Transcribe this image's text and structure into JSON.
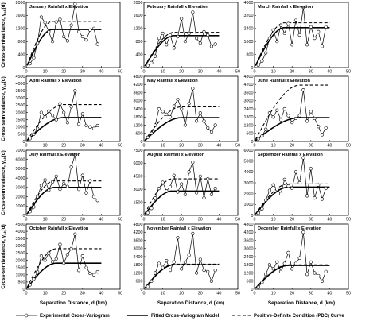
{
  "chart_data": {
    "type": "line",
    "x_label": "Separation Distance, d (km)",
    "y_label": "Cross-semivariance, γ",
    "y_label_sub": "ab",
    "y_label_tail": "(d)",
    "x_ticks": [
      0,
      10,
      20,
      30,
      40,
      50
    ],
    "x_range": [
      0,
      50
    ],
    "legend": {
      "experimental": "Experimental Cross-Variogram",
      "fitted": "Fitted Cross-Variogram Model",
      "pdc": "Positive-Definite Condition (PDC) Curve"
    },
    "panels": [
      {
        "title": "January Rainfall x Elevation",
        "y_ticks": [
          0,
          400,
          800,
          1200,
          1600,
          2000
        ],
        "ylim": [
          0,
          2000
        ],
        "sill": 1170,
        "range": 14,
        "pdc": 1420,
        "points": [
          [
            2,
            120
          ],
          [
            4,
            300
          ],
          [
            6,
            750
          ],
          [
            8,
            1550
          ],
          [
            10,
            1380
          ],
          [
            12,
            1100
          ],
          [
            14,
            800
          ],
          [
            16,
            1400
          ],
          [
            18,
            1480
          ],
          [
            20,
            950
          ],
          [
            22,
            820
          ],
          [
            24,
            1300
          ],
          [
            26,
            1950
          ],
          [
            28,
            1100
          ],
          [
            30,
            950
          ],
          [
            32,
            850
          ],
          [
            34,
            1150
          ],
          [
            36,
            1200
          ],
          [
            38,
            720
          ]
        ]
      },
      {
        "title": "February Rainfall x Elevation",
        "y_ticks": [
          0,
          400,
          800,
          1200,
          1600,
          2000
        ],
        "ylim": [
          0,
          2000
        ],
        "sill": 980,
        "range": 16,
        "pdc": 1080,
        "points": [
          [
            2,
            60
          ],
          [
            4,
            150
          ],
          [
            6,
            350
          ],
          [
            8,
            900
          ],
          [
            10,
            1050
          ],
          [
            12,
            700
          ],
          [
            14,
            1000
          ],
          [
            16,
            600
          ],
          [
            18,
            950
          ],
          [
            20,
            1500
          ],
          [
            22,
            800
          ],
          [
            24,
            1050
          ],
          [
            26,
            1700
          ],
          [
            28,
            900
          ],
          [
            30,
            750
          ],
          [
            32,
            1100
          ],
          [
            34,
            1000
          ],
          [
            36,
            650
          ],
          [
            38,
            720
          ]
        ]
      },
      {
        "title": "March Rainfall x Elevation",
        "y_ticks": [
          0,
          800,
          1600,
          2400,
          3200,
          4000
        ],
        "ylim": [
          0,
          4000
        ],
        "sill": 2450,
        "range": 16,
        "pdc": 2750,
        "points": [
          [
            2,
            150
          ],
          [
            4,
            400
          ],
          [
            6,
            900
          ],
          [
            8,
            1800
          ],
          [
            10,
            2300
          ],
          [
            12,
            1600
          ],
          [
            14,
            2600
          ],
          [
            16,
            2100
          ],
          [
            18,
            2700
          ],
          [
            20,
            1400
          ],
          [
            22,
            2900
          ],
          [
            24,
            2000
          ],
          [
            26,
            3700
          ],
          [
            28,
            1400
          ],
          [
            30,
            2500
          ],
          [
            32,
            1800
          ],
          [
            34,
            2200
          ],
          [
            36,
            1300
          ],
          [
            38,
            2500
          ]
        ]
      },
      {
        "title": "April Rainfall x Elevation",
        "y_ticks": [
          0,
          500,
          1000,
          1500,
          2000,
          2500,
          3000,
          3500,
          4000,
          4500
        ],
        "ylim": [
          0,
          4500
        ],
        "sill": 1650,
        "range": 20,
        "pdc": 2550,
        "points": [
          [
            2,
            200
          ],
          [
            4,
            500
          ],
          [
            6,
            900
          ],
          [
            8,
            2000
          ],
          [
            10,
            1700
          ],
          [
            12,
            2100
          ],
          [
            14,
            1800
          ],
          [
            16,
            1500
          ],
          [
            18,
            2600
          ],
          [
            20,
            2000
          ],
          [
            22,
            1300
          ],
          [
            24,
            2400
          ],
          [
            26,
            3500
          ],
          [
            28,
            1200
          ],
          [
            30,
            1900
          ],
          [
            32,
            1100
          ],
          [
            34,
            1000
          ],
          [
            36,
            900
          ],
          [
            38,
            1100
          ]
        ]
      },
      {
        "title": "May Rainfall x Elevation",
        "y_ticks": [
          0,
          600,
          1200,
          1800,
          2400,
          3000,
          3600,
          4200,
          4800
        ],
        "ylim": [
          0,
          4800
        ],
        "sill": 1750,
        "range": 20,
        "pdc": 2550,
        "points": [
          [
            2,
            300
          ],
          [
            4,
            600
          ],
          [
            6,
            1200
          ],
          [
            8,
            2400
          ],
          [
            10,
            2200
          ],
          [
            12,
            2000
          ],
          [
            14,
            1800
          ],
          [
            16,
            2600
          ],
          [
            18,
            3100
          ],
          [
            20,
            2400
          ],
          [
            22,
            1200
          ],
          [
            24,
            2800
          ],
          [
            26,
            3900
          ],
          [
            28,
            1500
          ],
          [
            30,
            2100
          ],
          [
            32,
            1500
          ],
          [
            34,
            1000
          ],
          [
            36,
            700
          ],
          [
            38,
            1200
          ]
        ]
      },
      {
        "title": "June Rainfall x Elevation",
        "y_ticks": [
          0,
          600,
          1200,
          1800,
          2400,
          3000,
          3600,
          4200,
          4800
        ],
        "ylim": [
          0,
          4800
        ],
        "sill": 1750,
        "range": 24,
        "pdc": 4150,
        "points": [
          [
            2,
            200
          ],
          [
            4,
            400
          ],
          [
            6,
            900
          ],
          [
            8,
            2100
          ],
          [
            10,
            1800
          ],
          [
            12,
            2300
          ],
          [
            14,
            1600
          ],
          [
            16,
            2400
          ],
          [
            18,
            1900
          ],
          [
            20,
            1400
          ],
          [
            22,
            1700
          ],
          [
            24,
            1900
          ],
          [
            26,
            3800
          ],
          [
            28,
            1500
          ],
          [
            30,
            2200
          ],
          [
            32,
            1700
          ],
          [
            34,
            1100
          ],
          [
            36,
            500
          ],
          [
            38,
            1000
          ]
        ]
      },
      {
        "title": "July Rainfall x Elevation",
        "y_ticks": [
          0,
          1000,
          2000,
          3000,
          4000,
          5000,
          6000,
          7000
        ],
        "ylim": [
          0,
          7000
        ],
        "sill": 3000,
        "range": 15,
        "pdc": 3700,
        "points": [
          [
            2,
            400
          ],
          [
            4,
            900
          ],
          [
            6,
            2000
          ],
          [
            8,
            3200
          ],
          [
            10,
            3800
          ],
          [
            12,
            2700
          ],
          [
            14,
            3600
          ],
          [
            16,
            4200
          ],
          [
            18,
            2800
          ],
          [
            20,
            3400
          ],
          [
            22,
            3100
          ],
          [
            24,
            5200
          ],
          [
            26,
            6500
          ],
          [
            28,
            2800
          ],
          [
            30,
            4300
          ],
          [
            32,
            2400
          ],
          [
            34,
            3700
          ],
          [
            36,
            2000
          ],
          [
            38,
            1600
          ]
        ]
      },
      {
        "title": "August Rainfall x Elevation",
        "y_ticks": [
          0,
          1500,
          3000,
          4500,
          6000,
          7500
        ],
        "ylim": [
          0,
          7500
        ],
        "sill": 2800,
        "range": 15,
        "pdc": 4200,
        "points": [
          [
            2,
            300
          ],
          [
            4,
            800
          ],
          [
            6,
            2000
          ],
          [
            8,
            3100
          ],
          [
            10,
            3800
          ],
          [
            12,
            2800
          ],
          [
            14,
            3300
          ],
          [
            16,
            4600
          ],
          [
            18,
            2700
          ],
          [
            20,
            3600
          ],
          [
            22,
            2400
          ],
          [
            24,
            5000
          ],
          [
            26,
            6100
          ],
          [
            28,
            2600
          ],
          [
            30,
            4500
          ],
          [
            32,
            2000
          ],
          [
            34,
            4200
          ],
          [
            36,
            2400
          ],
          [
            38,
            3100
          ]
        ]
      },
      {
        "title": "September Rainfall x Elevation",
        "y_ticks": [
          0,
          1000,
          2000,
          3000,
          4000,
          5000,
          6000
        ],
        "ylim": [
          0,
          6000
        ],
        "sill": 2600,
        "range": 18,
        "pdc": 2900,
        "points": [
          [
            2,
            200
          ],
          [
            4,
            600
          ],
          [
            6,
            1400
          ],
          [
            8,
            2300
          ],
          [
            10,
            2800
          ],
          [
            12,
            2400
          ],
          [
            14,
            2000
          ],
          [
            16,
            3300
          ],
          [
            18,
            2700
          ],
          [
            20,
            2500
          ],
          [
            22,
            4000
          ],
          [
            24,
            3000
          ],
          [
            26,
            5300
          ],
          [
            28,
            1800
          ],
          [
            30,
            4300
          ],
          [
            32,
            1600
          ],
          [
            34,
            2800
          ],
          [
            36,
            1500
          ],
          [
            38,
            2500
          ]
        ]
      },
      {
        "title": "October Rainfall x Elevation",
        "y_ticks": [
          0,
          500,
          1000,
          1500,
          2000,
          2500,
          3000,
          3500,
          4000,
          4500
        ],
        "ylim": [
          0,
          4500
        ],
        "sill": 1800,
        "range": 16,
        "pdc": 2800,
        "points": [
          [
            2,
            300
          ],
          [
            4,
            700
          ],
          [
            6,
            1200
          ],
          [
            8,
            2300
          ],
          [
            10,
            2000
          ],
          [
            12,
            2500
          ],
          [
            14,
            1900
          ],
          [
            16,
            2100
          ],
          [
            18,
            3100
          ],
          [
            20,
            1800
          ],
          [
            22,
            2400
          ],
          [
            24,
            2800
          ],
          [
            26,
            3800
          ],
          [
            28,
            1300
          ],
          [
            30,
            2300
          ],
          [
            32,
            1500
          ],
          [
            34,
            1100
          ],
          [
            36,
            1000
          ],
          [
            38,
            1200
          ]
        ]
      },
      {
        "title": "November Rainfall x Elevation",
        "y_ticks": [
          0,
          600,
          1200,
          1800,
          2400,
          3000,
          3600,
          4200,
          4800
        ],
        "ylim": [
          0,
          4800
        ],
        "sill": 1800,
        "range": 16,
        "pdc": 1850,
        "points": [
          [
            2,
            200
          ],
          [
            4,
            600
          ],
          [
            6,
            1200
          ],
          [
            8,
            1900
          ],
          [
            10,
            1600
          ],
          [
            12,
            2100
          ],
          [
            14,
            1400
          ],
          [
            16,
            2000
          ],
          [
            18,
            3800
          ],
          [
            20,
            1500
          ],
          [
            22,
            2000
          ],
          [
            24,
            2500
          ],
          [
            26,
            4100
          ],
          [
            28,
            1200
          ],
          [
            30,
            2200
          ],
          [
            32,
            1400
          ],
          [
            34,
            1300
          ],
          [
            36,
            600
          ],
          [
            38,
            1400
          ]
        ]
      },
      {
        "title": "December Rainfall x Elevation",
        "y_ticks": [
          0,
          600,
          1200,
          1800,
          2400,
          3000,
          3600,
          4200,
          4800
        ],
        "ylim": [
          0,
          4800
        ],
        "sill": 1750,
        "range": 18,
        "pdc": 1800,
        "points": [
          [
            2,
            150
          ],
          [
            4,
            500
          ],
          [
            6,
            1100
          ],
          [
            8,
            1800
          ],
          [
            10,
            1500
          ],
          [
            12,
            2000
          ],
          [
            14,
            1300
          ],
          [
            16,
            1900
          ],
          [
            18,
            2700
          ],
          [
            20,
            1500
          ],
          [
            22,
            1900
          ],
          [
            24,
            2300
          ],
          [
            26,
            4200
          ],
          [
            28,
            1100
          ],
          [
            30,
            2000
          ],
          [
            32,
            1200
          ],
          [
            34,
            1000
          ],
          [
            36,
            600
          ],
          [
            38,
            1300
          ]
        ]
      }
    ]
  }
}
